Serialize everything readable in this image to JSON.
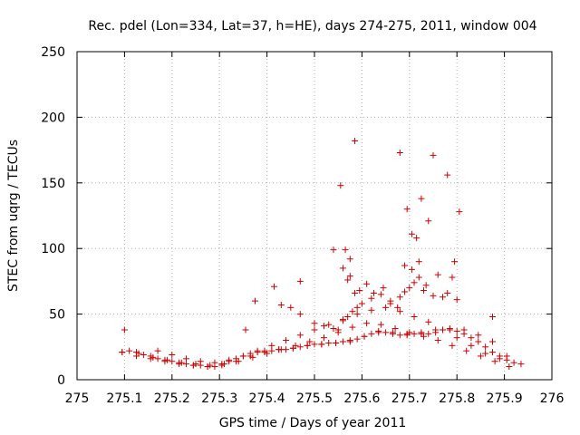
{
  "chart_data": {
    "type": "scatter",
    "title": "Rec. pdel (Lon=334, Lat=37, h=HE), days 274-275, 2011, window 004",
    "xlabel": "GPS time / Days of year 2011",
    "ylabel": "STEC from uqrg / TECUs",
    "xlim": [
      275,
      276
    ],
    "ylim": [
      0,
      250
    ],
    "xticks": [
      "275",
      "275.1",
      "275.2",
      "275.3",
      "275.4",
      "275.5",
      "275.6",
      "275.7",
      "275.8",
      "275.9",
      "276"
    ],
    "yticks": [
      "0",
      "50",
      "100",
      "150",
      "200",
      "250"
    ],
    "grid": true,
    "legend": "none",
    "marker": "+",
    "marker_color": "#cc0000",
    "series": [
      {
        "x": [
          275.095,
          275.11,
          275.125,
          275.14,
          275.155,
          275.17,
          275.185,
          275.2,
          275.215,
          275.23,
          275.245,
          275.26,
          275.275,
          275.29,
          275.305,
          275.32,
          275.335,
          275.35,
          275.365,
          275.38,
          275.395,
          275.41,
          275.425,
          275.44,
          275.455,
          275.47,
          275.485,
          275.5,
          275.515,
          275.53,
          275.545,
          275.56,
          275.575,
          275.59,
          275.605,
          275.62,
          275.635,
          275.65,
          275.665,
          275.68,
          275.695,
          275.71,
          275.725,
          275.74,
          275.755,
          275.77,
          275.785,
          275.8,
          275.815,
          275.83,
          275.845,
          275.86,
          275.875,
          275.89,
          275.905,
          275.92,
          275.935,
          275.095,
          275.125,
          275.155,
          275.185,
          275.215,
          275.245,
          275.275,
          275.305,
          275.335,
          275.365,
          275.395,
          275.425,
          275.455,
          275.485,
          275.515,
          275.545,
          275.575,
          275.605,
          275.635,
          275.665,
          275.695,
          275.725,
          275.755,
          275.785,
          275.815,
          275.845,
          275.875,
          275.905,
          275.13,
          275.16,
          275.19,
          275.22,
          275.25,
          275.28,
          275.31,
          275.34,
          275.37,
          275.4,
          275.43,
          275.46,
          275.49,
          275.52,
          275.55,
          275.58,
          275.61,
          275.64,
          275.67,
          275.7,
          275.73,
          275.76,
          275.79,
          275.82,
          275.85,
          275.88,
          275.91,
          275.17,
          275.2,
          275.23,
          275.26,
          275.29,
          275.32,
          275.35,
          275.38,
          275.41,
          275.44,
          275.47,
          275.5,
          275.53,
          275.56,
          275.59,
          275.62,
          275.65,
          275.68,
          275.71,
          275.74,
          275.77,
          275.8,
          275.83,
          275.86,
          275.89,
          275.375,
          275.415,
          275.43,
          275.45,
          275.47,
          275.5,
          275.52,
          275.54,
          275.55,
          275.56,
          275.57,
          275.58,
          275.59,
          275.6,
          275.62,
          275.64,
          275.66,
          275.68,
          275.69,
          275.7,
          275.71,
          275.72,
          275.73,
          275.75,
          275.77,
          275.79,
          275.8,
          275.54,
          275.555,
          275.565,
          275.575,
          275.585,
          275.68,
          275.695,
          275.705,
          275.715,
          275.725,
          275.74,
          275.75,
          275.78,
          275.795,
          275.805,
          275.1,
          275.355,
          275.47,
          275.875,
          275.56,
          275.57,
          275.575,
          275.585,
          275.595,
          275.61,
          275.625,
          275.645,
          275.66,
          275.675,
          275.69,
          275.705,
          275.72,
          275.735,
          275.76,
          275.78
        ],
        "y": [
          21,
          22,
          21,
          19,
          18,
          16,
          15,
          14,
          13,
          12,
          11,
          11,
          10,
          10,
          12,
          14,
          16,
          18,
          20,
          21,
          22,
          22,
          23,
          23,
          24,
          25,
          26,
          27,
          27,
          28,
          28,
          29,
          30,
          31,
          33,
          35,
          36,
          36,
          35,
          34,
          34,
          35,
          35,
          35,
          36,
          38,
          38,
          37,
          35,
          32,
          29,
          25,
          21,
          18,
          15,
          13,
          12,
          21,
          18,
          16,
          14,
          12,
          11,
          10,
          11,
          14,
          18,
          21,
          23,
          24,
          26,
          27,
          28,
          29,
          33,
          37,
          36,
          35,
          36,
          38,
          39,
          38,
          34,
          29,
          18,
          20,
          17,
          15,
          13,
          12,
          11,
          12,
          14,
          17,
          20,
          23,
          26,
          29,
          32,
          36,
          40,
          43,
          42,
          39,
          36,
          33,
          30,
          26,
          22,
          18,
          14,
          10,
          22,
          19,
          16,
          14,
          13,
          15,
          18,
          22,
          26,
          30,
          34,
          38,
          42,
          46,
          50,
          53,
          55,
          52,
          48,
          44,
          38,
          32,
          26,
          20,
          16,
          60,
          71,
          57,
          55,
          50,
          43,
          41,
          39,
          38,
          45,
          48,
          52,
          55,
          58,
          62,
          65,
          60,
          63,
          67,
          70,
          74,
          78,
          68,
          64,
          63,
          78,
          61,
          99,
          148,
          99,
          92,
          182,
          173,
          130,
          111,
          108,
          138,
          121,
          171,
          156,
          90,
          128,
          38,
          38,
          75,
          48,
          85,
          76,
          79,
          66,
          68,
          73,
          66,
          70,
          58,
          55,
          87,
          84,
          90,
          72,
          80,
          66
        ]
      }
    ]
  }
}
